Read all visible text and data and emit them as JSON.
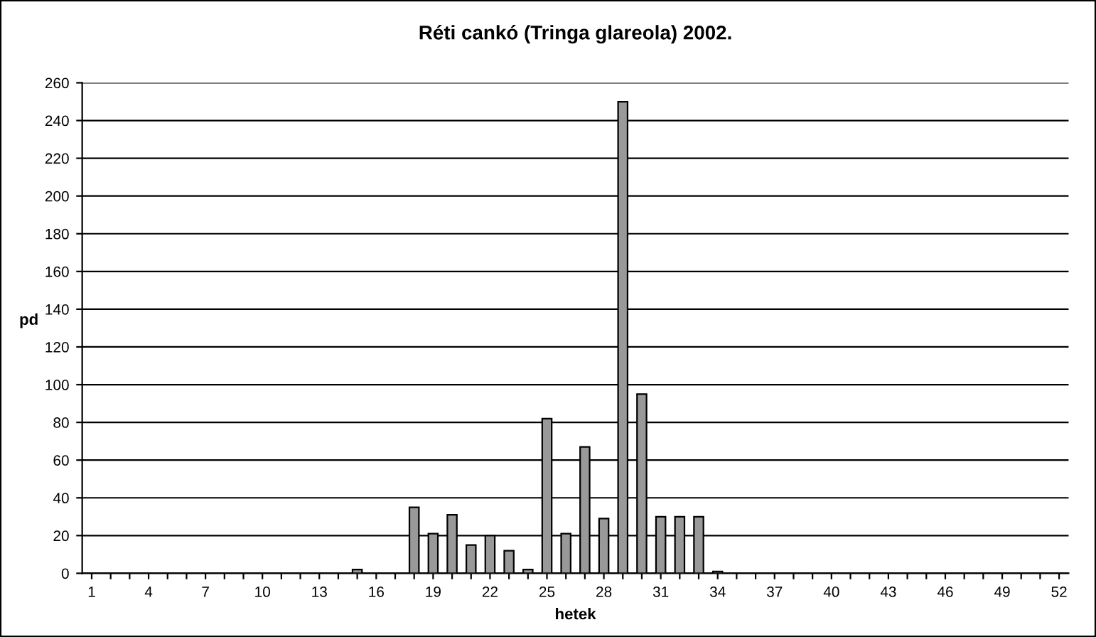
{
  "chart_data": {
    "type": "bar",
    "title": "Réti cankó (Tringa glareola) 2002.",
    "xlabel": "hetek",
    "ylabel": "pd",
    "categories": [
      "1",
      null,
      null,
      "4",
      null,
      null,
      "7",
      null,
      null,
      "10",
      null,
      null,
      "13",
      null,
      null,
      "16",
      null,
      null,
      "19",
      null,
      null,
      "22",
      null,
      null,
      "25",
      null,
      null,
      "28",
      null,
      null,
      "31",
      null,
      null,
      "34",
      null,
      null,
      "37",
      null,
      null,
      "40",
      null,
      null,
      "43",
      null,
      null,
      "46",
      null,
      null,
      "49",
      null,
      null,
      "52"
    ],
    "values": [
      0,
      0,
      0,
      0,
      0,
      0,
      0,
      0,
      0,
      0,
      0,
      0,
      0,
      0,
      2,
      0,
      0,
      35,
      21,
      31,
      15,
      20,
      12,
      2,
      82,
      21,
      67,
      29,
      250,
      95,
      30,
      30,
      30,
      1,
      0,
      0,
      0,
      0,
      0,
      0,
      0,
      0,
      0,
      0,
      0,
      0,
      0,
      0,
      0,
      0,
      0,
      0
    ],
    "color": "#999999",
    "ylim": [
      0,
      260
    ],
    "yticks": [
      0,
      20,
      40,
      60,
      80,
      100,
      120,
      140,
      160,
      180,
      200,
      220,
      240,
      260
    ],
    "grid": "y"
  }
}
